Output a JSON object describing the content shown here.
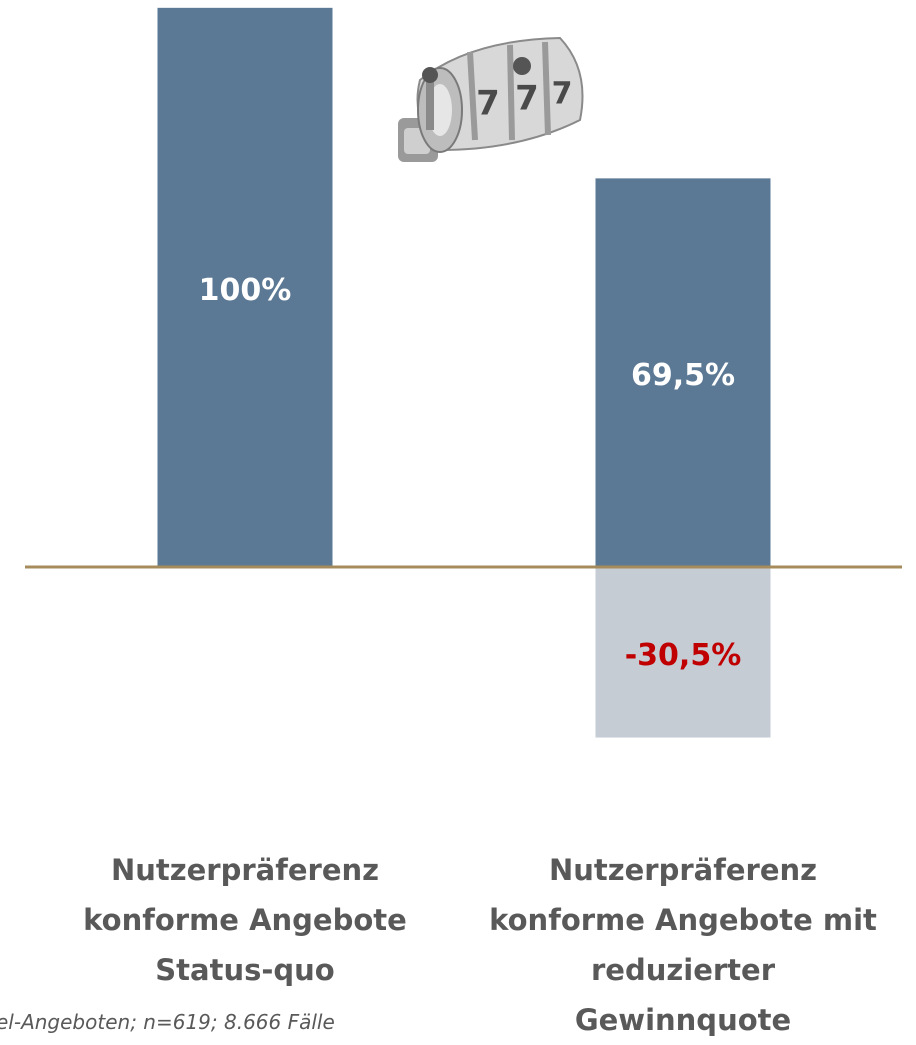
{
  "chart_data": {
    "type": "bar",
    "categories": [
      "Nutzerpräferenz\nkonforme Angebote\nStatus-quo",
      "Nutzerpräferenz\nkonforme Angebote mit\nreduzierter\nGewinnquote"
    ],
    "series": [
      {
        "color": "#5b7895",
        "label_color": "#ffffff",
        "values": [
          100,
          69.5
        ],
        "value_labels": [
          "100%",
          "69,5%"
        ]
      },
      {
        "color": "#c5ccd4",
        "label_color": "#c00000",
        "values": [
          null,
          -30.5
        ],
        "value_labels": [
          null,
          "-30,5%"
        ]
      }
    ],
    "ylim": [
      -83.7,
      101.4
    ],
    "baseline_color": "#a68c5c",
    "footnote": "el-Angeboten; n=619; 8.666 Fälle"
  }
}
